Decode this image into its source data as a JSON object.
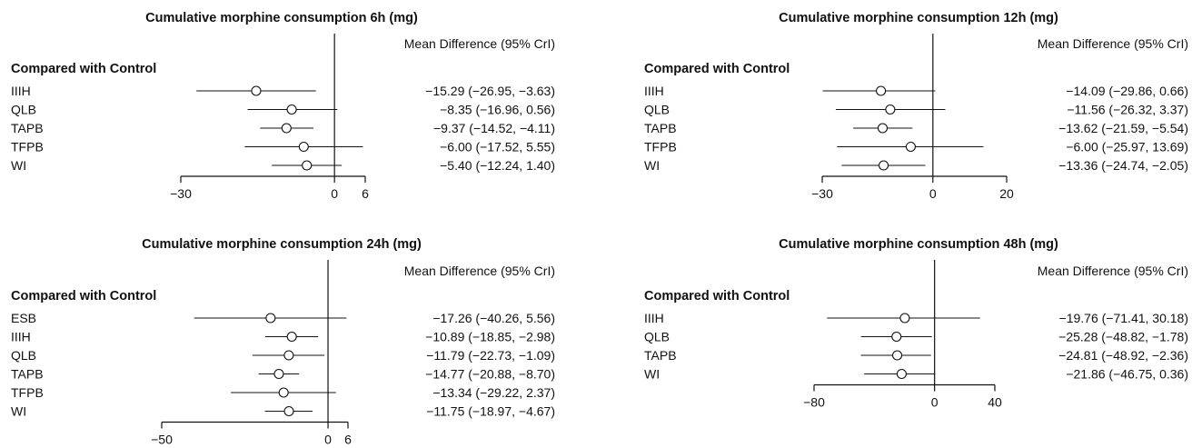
{
  "page": {
    "header_label": "Compared with Control",
    "estimate_header": "Mean Difference (95% CrI)"
  },
  "chart_data": [
    {
      "type": "forest",
      "title": "Cumulative morphine consumption 6h (mg)",
      "x_ticks": [
        -30,
        0,
        6
      ],
      "xlim": [
        -30,
        6
      ],
      "rows": [
        {
          "label": "IIIH",
          "mean": -15.29,
          "lo": -26.95,
          "hi": -3.63,
          "text": "−15.29 (−26.95, −3.63)"
        },
        {
          "label": "QLB",
          "mean": -8.35,
          "lo": -16.96,
          "hi": 0.56,
          "text": "−8.35 (−16.96, 0.56)"
        },
        {
          "label": "TAPB",
          "mean": -9.37,
          "lo": -14.52,
          "hi": -4.11,
          "text": "−9.37 (−14.52, −4.11)"
        },
        {
          "label": "TFPB",
          "mean": -6.0,
          "lo": -17.52,
          "hi": 5.55,
          "text": "−6.00 (−17.52, 5.55)"
        },
        {
          "label": "WI",
          "mean": -5.4,
          "lo": -12.24,
          "hi": 1.4,
          "text": "−5.40 (−12.24, 1.40)"
        }
      ]
    },
    {
      "type": "forest",
      "title": "Cumulative morphine consumption 12h (mg)",
      "x_ticks": [
        -30,
        0,
        20
      ],
      "xlim": [
        -30,
        20
      ],
      "rows": [
        {
          "label": "IIIH",
          "mean": -14.09,
          "lo": -29.86,
          "hi": 0.66,
          "text": "−14.09 (−29.86, 0.66)"
        },
        {
          "label": "QLB",
          "mean": -11.56,
          "lo": -26.32,
          "hi": 3.37,
          "text": "−11.56 (−26.32, 3.37)"
        },
        {
          "label": "TAPB",
          "mean": -13.62,
          "lo": -21.59,
          "hi": -5.54,
          "text": "−13.62 (−21.59, −5.54)"
        },
        {
          "label": "TFPB",
          "mean": -6.0,
          "lo": -25.97,
          "hi": 13.69,
          "text": "−6.00 (−25.97, 13.69)"
        },
        {
          "label": "WI",
          "mean": -13.36,
          "lo": -24.74,
          "hi": -2.05,
          "text": "−13.36 (−24.74, −2.05)"
        }
      ]
    },
    {
      "type": "forest",
      "title": "Cumulative morphine consumption 24h (mg)",
      "x_ticks": [
        -50,
        0,
        6
      ],
      "xlim": [
        -50,
        6
      ],
      "rows": [
        {
          "label": "ESB",
          "mean": -17.26,
          "lo": -40.26,
          "hi": 5.56,
          "text": "−17.26 (−40.26, 5.56)"
        },
        {
          "label": "IIIH",
          "mean": -10.89,
          "lo": -18.85,
          "hi": -2.98,
          "text": "−10.89 (−18.85, −2.98)"
        },
        {
          "label": "QLB",
          "mean": -11.79,
          "lo": -22.73,
          "hi": -1.09,
          "text": "−11.79 (−22.73, −1.09)"
        },
        {
          "label": "TAPB",
          "mean": -14.77,
          "lo": -20.88,
          "hi": -8.7,
          "text": "−14.77 (−20.88, −8.70)"
        },
        {
          "label": "TFPB",
          "mean": -13.34,
          "lo": -29.22,
          "hi": 2.37,
          "text": "−13.34 (−29.22, 2.37)"
        },
        {
          "label": "WI",
          "mean": -11.75,
          "lo": -18.97,
          "hi": -4.67,
          "text": "−11.75 (−18.97, −4.67)"
        }
      ]
    },
    {
      "type": "forest",
      "title": "Cumulative morphine consumption 48h (mg)",
      "x_ticks": [
        -80,
        0,
        40
      ],
      "xlim": [
        -80,
        40
      ],
      "rows": [
        {
          "label": "IIIH",
          "mean": -19.76,
          "lo": -71.41,
          "hi": 30.18,
          "text": "−19.76 (−71.41, 30.18)"
        },
        {
          "label": "QLB",
          "mean": -25.28,
          "lo": -48.82,
          "hi": -1.78,
          "text": "−25.28 (−48.82, −1.78)"
        },
        {
          "label": "TAPB",
          "mean": -24.81,
          "lo": -48.92,
          "hi": -2.36,
          "text": "−24.81 (−48.92, −2.36)"
        },
        {
          "label": "WI",
          "mean": -21.86,
          "lo": -46.75,
          "hi": 0.36,
          "text": "−21.86 (−46.75, 0.36)"
        }
      ]
    }
  ]
}
